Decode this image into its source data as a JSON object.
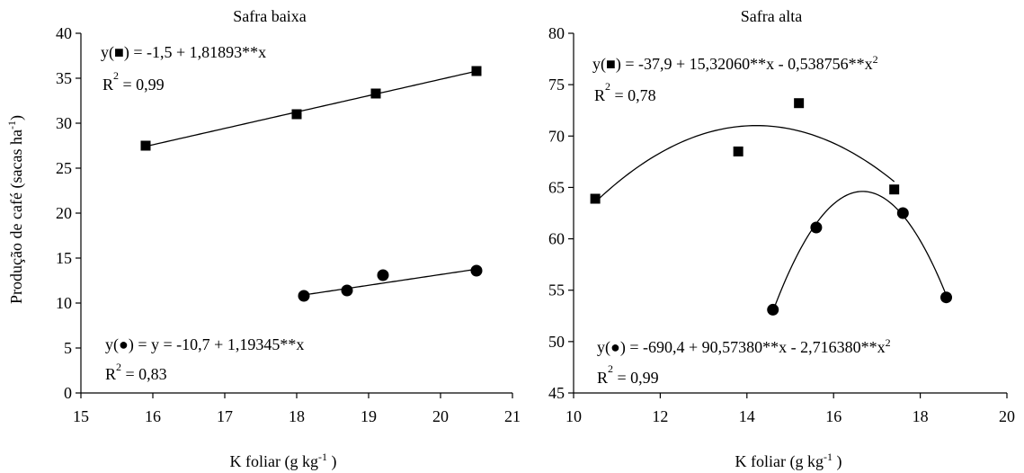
{
  "ylabel": {
    "pre": "Produção de café (sacas ha",
    "sup": "-1",
    "post": ")"
  },
  "chart_data": [
    {
      "type": "scatter",
      "title": "Safra baixa",
      "xlabel": {
        "pre": "K foliar (g kg",
        "sup": "-1",
        "post": " )"
      },
      "xlim": [
        15,
        21
      ],
      "ylim": [
        0,
        40
      ],
      "xticks": [
        15,
        16,
        17,
        18,
        19,
        20,
        21
      ],
      "yticks": [
        0,
        5,
        10,
        15,
        20,
        25,
        30,
        35,
        40
      ],
      "series": [
        {
          "marker": "square",
          "x": [
            15.9,
            18.0,
            19.1,
            20.5
          ],
          "y": [
            27.5,
            31.0,
            33.3,
            35.8
          ],
          "fit": {
            "kind": "linear",
            "coef": [
              -1.5,
              1.81893
            ],
            "range": [
              15.9,
              20.5
            ]
          },
          "equation": {
            "y": "y(",
            "rest": ") = -1,5 + 1,81893**x",
            "exp": ""
          },
          "r2": {
            "r": "R",
            "two": "2",
            "val": " = 0,99"
          }
        },
        {
          "marker": "circle",
          "x": [
            18.1,
            18.7,
            19.2,
            20.5
          ],
          "y": [
            10.8,
            11.4,
            13.1,
            13.6
          ],
          "fit": {
            "kind": "linear",
            "coef": [
              -10.7,
              1.19345
            ],
            "range": [
              18.1,
              20.5
            ]
          },
          "equation": {
            "y": "y(",
            "rest": ") =  y = -10,7 + 1,19345**x",
            "exp": ""
          },
          "r2": {
            "r": "R",
            "two": "2",
            "val": " = 0,83"
          }
        }
      ]
    },
    {
      "type": "scatter",
      "title": "Safra alta",
      "xlabel": {
        "pre": "K foliar (g kg",
        "sup": "-1",
        "post": " )"
      },
      "xlim": [
        10,
        20
      ],
      "ylim": [
        45,
        80
      ],
      "xticks": [
        10,
        12,
        14,
        16,
        18,
        20
      ],
      "yticks": [
        45,
        50,
        55,
        60,
        65,
        70,
        75,
        80
      ],
      "series": [
        {
          "marker": "square",
          "x": [
            10.5,
            13.8,
            15.2,
            17.4
          ],
          "y": [
            63.9,
            68.5,
            73.2,
            64.8
          ],
          "fit": {
            "kind": "quadratic",
            "coef": [
              -37.9,
              15.3206,
              -0.538756
            ],
            "range": [
              10.5,
              17.4
            ]
          },
          "equation": {
            "y": "y(",
            "rest": ") = -37,9 + 15,32060**x - 0,538756**x",
            "exp": "2"
          },
          "r2": {
            "r": "R",
            "two": "2",
            "val": " = 0,78"
          }
        },
        {
          "marker": "circle",
          "x": [
            14.6,
            15.6,
            17.6,
            18.6
          ],
          "y": [
            53.1,
            61.1,
            62.5,
            54.3
          ],
          "fit": {
            "kind": "quadratic",
            "coef": [
              -690.4,
              90.5738,
              -2.71638
            ],
            "range": [
              14.6,
              18.6
            ]
          },
          "equation": {
            "y": "y(",
            "rest": ") = -690,4 + 90,57380**x - 2,716380**x",
            "exp": "2"
          },
          "r2": {
            "r": "R",
            "two": "2",
            "val": " = 0,99"
          }
        }
      ]
    }
  ]
}
